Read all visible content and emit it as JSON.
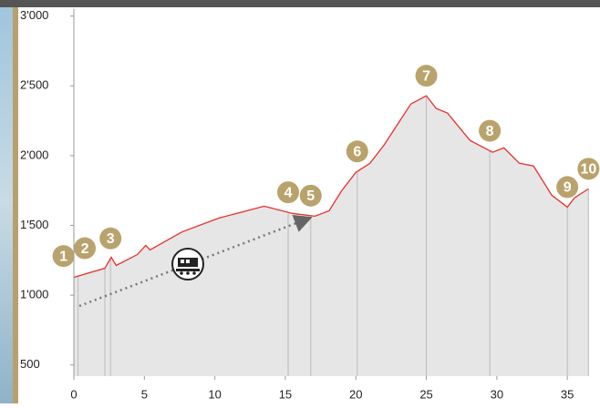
{
  "chart_data": {
    "type": "area",
    "x": [
      0,
      2.2,
      2.65,
      3.0,
      4.5,
      5.1,
      5.4,
      7.7,
      10.3,
      13.5,
      15.5,
      17.1,
      18.1,
      19.0,
      20.0,
      21.0,
      22.0,
      23.9,
      25.0,
      25.7,
      26.5,
      28.1,
      29.7,
      30.5,
      31.6,
      32.6,
      33.9,
      35.0,
      35.5,
      36.5
    ],
    "values": [
      1128,
      1193,
      1272,
      1213,
      1291,
      1357,
      1324,
      1455,
      1553,
      1638,
      1586,
      1566,
      1605,
      1749,
      1880,
      1945,
      2076,
      2370,
      2429,
      2338,
      2305,
      2109,
      2024,
      2056,
      1945,
      1926,
      1716,
      1631,
      1697,
      1762
    ],
    "color": "#e8302a",
    "fill": "#e6e6e6",
    "marker_color": "#b9a36c",
    "xlim": [
      0,
      36.8
    ],
    "xticks": [
      0,
      5,
      10,
      15,
      20,
      25,
      30,
      35
    ],
    "ylim": [
      420,
      3050
    ],
    "yticks": [
      {
        "value": 500,
        "label": "500"
      },
      {
        "value": 1000,
        "label": "1'000"
      },
      {
        "value": 1500,
        "label": "1'500"
      },
      {
        "value": 2000,
        "label": "2'000"
      },
      {
        "value": 2500,
        "label": "2'500"
      },
      {
        "value": 3000,
        "label": "3'000"
      }
    ],
    "stops": [
      {
        "label": "1",
        "x": 0.3
      },
      {
        "label": "2",
        "x": 2.2
      },
      {
        "label": "3",
        "x": 2.6
      },
      {
        "label": "4",
        "x": 15.2
      },
      {
        "label": "5",
        "x": 16.8
      },
      {
        "label": "6",
        "x": 20.1
      },
      {
        "label": "7",
        "x": 25.0
      },
      {
        "label": "8",
        "x": 29.5
      },
      {
        "label": "9",
        "x": 35.0
      },
      {
        "label": "10",
        "x": 36.5
      }
    ]
  }
}
